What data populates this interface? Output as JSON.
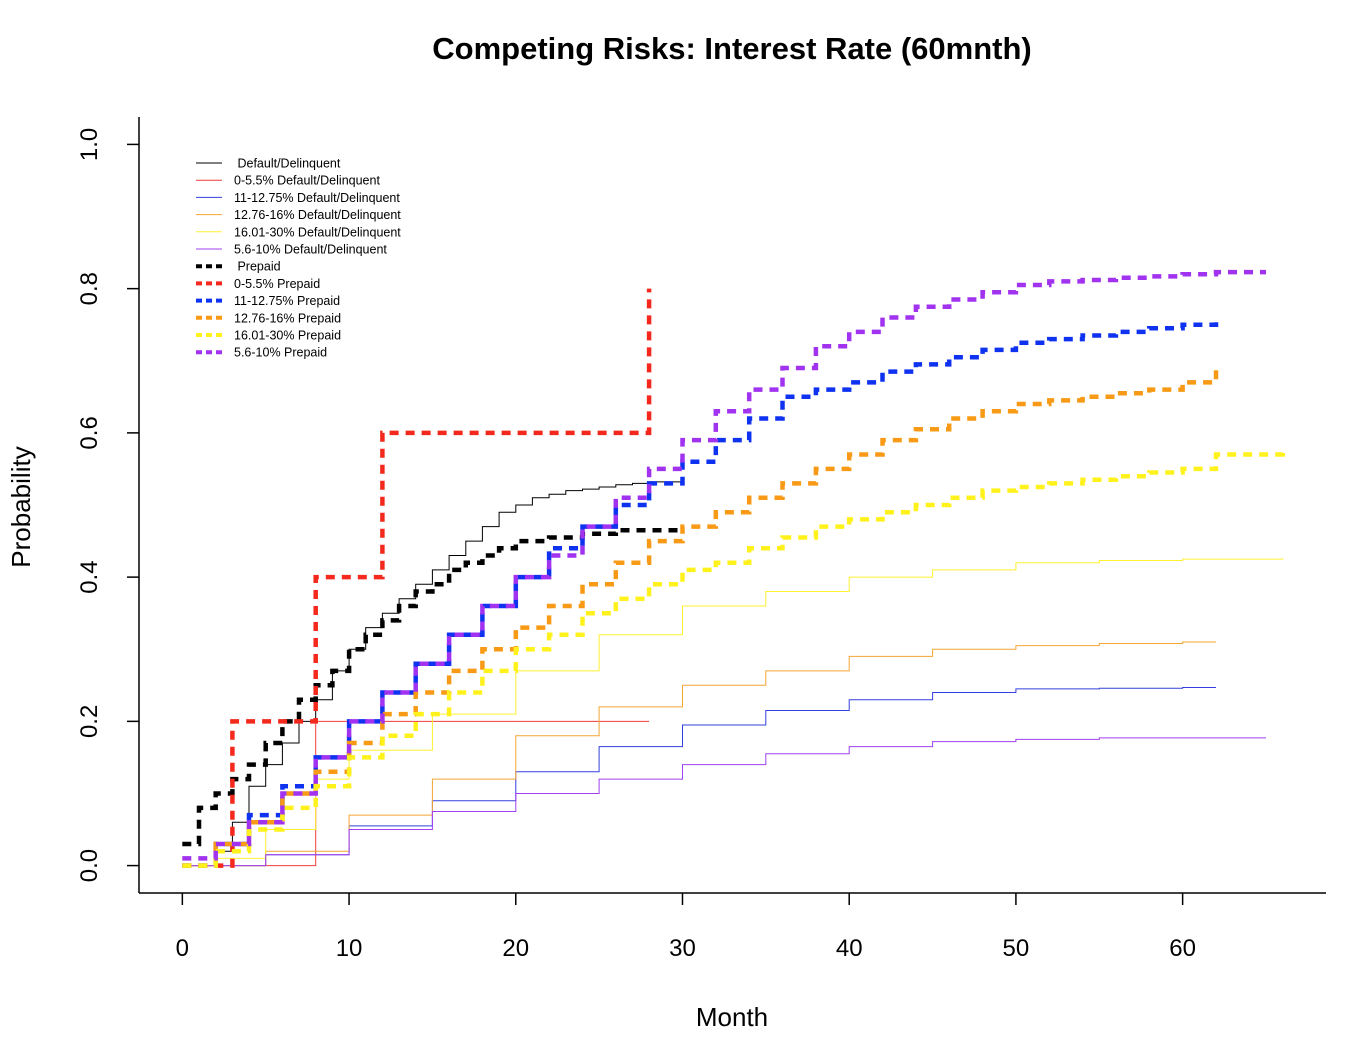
{
  "chart_data": {
    "type": "line",
    "title": "Competing Risks: Interest Rate (60mnth)",
    "xlabel": "Month",
    "ylabel": "Probability",
    "xlim": [
      -2.6,
      68.6
    ],
    "ylim": [
      -0.038,
      1.038
    ],
    "x_ticks": [
      0,
      10,
      20,
      30,
      40,
      50,
      60
    ],
    "y_ticks": [
      0.0,
      0.2,
      0.4,
      0.6,
      0.8,
      1.0
    ],
    "x_tick_labels": [
      "0",
      "10",
      "20",
      "30",
      "40",
      "50",
      "60"
    ],
    "y_tick_labels": [
      "0.0",
      "0.2",
      "0.4",
      "0.6",
      "0.8",
      "1.0"
    ],
    "grid": false,
    "legend_position": "top-left",
    "step": true,
    "series": [
      {
        "name": " Default/Delinquent",
        "color": "#000000",
        "style": "thin",
        "points": [
          [
            0,
            0
          ],
          [
            2,
            0.02
          ],
          [
            3,
            0.06
          ],
          [
            4,
            0.11
          ],
          [
            5,
            0.14
          ],
          [
            6,
            0.17
          ],
          [
            7,
            0.2
          ],
          [
            8,
            0.23
          ],
          [
            9,
            0.27
          ],
          [
            10,
            0.3
          ],
          [
            11,
            0.33
          ],
          [
            12,
            0.35
          ],
          [
            13,
            0.37
          ],
          [
            14,
            0.39
          ],
          [
            15,
            0.41
          ],
          [
            16,
            0.43
          ],
          [
            17,
            0.45
          ],
          [
            18,
            0.47
          ],
          [
            19,
            0.49
          ],
          [
            20,
            0.5
          ],
          [
            21,
            0.51
          ],
          [
            22,
            0.515
          ],
          [
            23,
            0.52
          ],
          [
            24,
            0.522
          ],
          [
            25,
            0.525
          ],
          [
            26,
            0.528
          ],
          [
            27,
            0.53
          ],
          [
            28,
            0.532
          ],
          [
            30,
            0.533
          ]
        ]
      },
      {
        "name": "0-5.5% Default/Delinquent",
        "color": "#f23c3c",
        "style": "thin",
        "points": [
          [
            0,
            0
          ],
          [
            8,
            0
          ],
          [
            8,
            0.2
          ],
          [
            28,
            0.2
          ]
        ]
      },
      {
        "name": "11-12.75% Default/Delinquent",
        "color": "#3340dd",
        "style": "thin",
        "points": [
          [
            0,
            0
          ],
          [
            5,
            0.015
          ],
          [
            10,
            0.055
          ],
          [
            15,
            0.09
          ],
          [
            20,
            0.13
          ],
          [
            25,
            0.165
          ],
          [
            30,
            0.195
          ],
          [
            35,
            0.215
          ],
          [
            40,
            0.23
          ],
          [
            45,
            0.24
          ],
          [
            50,
            0.245
          ],
          [
            55,
            0.246
          ],
          [
            60,
            0.247
          ],
          [
            62,
            0.247
          ]
        ]
      },
      {
        "name": "12.76-16% Default/Delinquent",
        "color": "#f4a532",
        "style": "thin",
        "points": [
          [
            0,
            0
          ],
          [
            5,
            0.02
          ],
          [
            10,
            0.07
          ],
          [
            15,
            0.12
          ],
          [
            20,
            0.18
          ],
          [
            25,
            0.22
          ],
          [
            30,
            0.25
          ],
          [
            35,
            0.27
          ],
          [
            40,
            0.29
          ],
          [
            45,
            0.3
          ],
          [
            50,
            0.305
          ],
          [
            55,
            0.308
          ],
          [
            60,
            0.31
          ],
          [
            62,
            0.31
          ]
        ]
      },
      {
        "name": "16.01-30% Default/Delinquent",
        "color": "#fff030",
        "style": "thin",
        "points": [
          [
            0,
            0
          ],
          [
            2,
            0.01
          ],
          [
            5,
            0.05
          ],
          [
            8,
            0.12
          ],
          [
            10,
            0.16
          ],
          [
            15,
            0.21
          ],
          [
            20,
            0.27
          ],
          [
            25,
            0.32
          ],
          [
            30,
            0.36
          ],
          [
            35,
            0.38
          ],
          [
            40,
            0.4
          ],
          [
            45,
            0.41
          ],
          [
            50,
            0.42
          ],
          [
            55,
            0.423
          ],
          [
            60,
            0.425
          ],
          [
            66,
            0.426
          ]
        ]
      },
      {
        "name": "5.6-10% Default/Delinquent",
        "color": "#a040f0",
        "style": "thin",
        "points": [
          [
            0,
            0
          ],
          [
            5,
            0.015
          ],
          [
            10,
            0.05
          ],
          [
            15,
            0.075
          ],
          [
            20,
            0.1
          ],
          [
            25,
            0.12
          ],
          [
            30,
            0.14
          ],
          [
            35,
            0.155
          ],
          [
            40,
            0.165
          ],
          [
            45,
            0.172
          ],
          [
            50,
            0.175
          ],
          [
            55,
            0.177
          ],
          [
            60,
            0.177
          ],
          [
            65,
            0.177
          ]
        ]
      },
      {
        "name": " Prepaid",
        "color": "#000000",
        "style": "dashed",
        "points": [
          [
            0,
            0.03
          ],
          [
            1,
            0.08
          ],
          [
            2,
            0.1
          ],
          [
            3,
            0.12
          ],
          [
            4,
            0.14
          ],
          [
            5,
            0.17
          ],
          [
            6,
            0.2
          ],
          [
            7,
            0.23
          ],
          [
            8,
            0.25
          ],
          [
            9,
            0.27
          ],
          [
            10,
            0.3
          ],
          [
            11,
            0.32
          ],
          [
            12,
            0.34
          ],
          [
            13,
            0.36
          ],
          [
            14,
            0.38
          ],
          [
            15,
            0.39
          ],
          [
            16,
            0.41
          ],
          [
            17,
            0.42
          ],
          [
            18,
            0.43
          ],
          [
            19,
            0.44
          ],
          [
            20,
            0.45
          ],
          [
            22,
            0.455
          ],
          [
            24,
            0.46
          ],
          [
            26,
            0.465
          ],
          [
            30,
            0.467
          ]
        ]
      },
      {
        "name": "0-5.5% Prepaid",
        "color": "#f4281c",
        "style": "dashed",
        "points": [
          [
            0,
            0
          ],
          [
            3,
            0
          ],
          [
            3,
            0.2
          ],
          [
            8,
            0.2
          ],
          [
            8,
            0.4
          ],
          [
            12,
            0.4
          ],
          [
            12,
            0.6
          ],
          [
            28,
            0.6
          ],
          [
            28,
            0.8
          ]
        ]
      },
      {
        "name": "11-12.75% Prepaid",
        "color": "#0f32f0",
        "style": "dashed",
        "points": [
          [
            0,
            0
          ],
          [
            2,
            0.03
          ],
          [
            4,
            0.07
          ],
          [
            6,
            0.11
          ],
          [
            8,
            0.15
          ],
          [
            10,
            0.2
          ],
          [
            12,
            0.24
          ],
          [
            14,
            0.28
          ],
          [
            16,
            0.32
          ],
          [
            18,
            0.36
          ],
          [
            20,
            0.4
          ],
          [
            22,
            0.44
          ],
          [
            24,
            0.47
          ],
          [
            26,
            0.5
          ],
          [
            28,
            0.53
          ],
          [
            30,
            0.56
          ],
          [
            32,
            0.59
          ],
          [
            34,
            0.62
          ],
          [
            36,
            0.65
          ],
          [
            38,
            0.66
          ],
          [
            40,
            0.67
          ],
          [
            42,
            0.685
          ],
          [
            44,
            0.695
          ],
          [
            46,
            0.705
          ],
          [
            48,
            0.715
          ],
          [
            50,
            0.725
          ],
          [
            52,
            0.73
          ],
          [
            54,
            0.735
          ],
          [
            56,
            0.74
          ],
          [
            58,
            0.745
          ],
          [
            60,
            0.75
          ],
          [
            62,
            0.755
          ]
        ]
      },
      {
        "name": "12.76-16% Prepaid",
        "color": "#f89a15",
        "style": "dashed",
        "points": [
          [
            0,
            0
          ],
          [
            2,
            0.03
          ],
          [
            4,
            0.06
          ],
          [
            6,
            0.1
          ],
          [
            8,
            0.13
          ],
          [
            10,
            0.17
          ],
          [
            12,
            0.21
          ],
          [
            14,
            0.24
          ],
          [
            16,
            0.27
          ],
          [
            18,
            0.3
          ],
          [
            20,
            0.33
          ],
          [
            22,
            0.36
          ],
          [
            24,
            0.39
          ],
          [
            26,
            0.42
          ],
          [
            28,
            0.45
          ],
          [
            30,
            0.47
          ],
          [
            32,
            0.49
          ],
          [
            34,
            0.51
          ],
          [
            36,
            0.53
          ],
          [
            38,
            0.55
          ],
          [
            40,
            0.57
          ],
          [
            42,
            0.59
          ],
          [
            44,
            0.605
          ],
          [
            46,
            0.62
          ],
          [
            48,
            0.63
          ],
          [
            50,
            0.64
          ],
          [
            52,
            0.645
          ],
          [
            54,
            0.65
          ],
          [
            56,
            0.655
          ],
          [
            58,
            0.66
          ],
          [
            60,
            0.67
          ],
          [
            62,
            0.69
          ]
        ]
      },
      {
        "name": "16.01-30% Prepaid",
        "color": "#fff21c",
        "style": "dashed",
        "points": [
          [
            0,
            0
          ],
          [
            2,
            0.02
          ],
          [
            4,
            0.05
          ],
          [
            6,
            0.08
          ],
          [
            8,
            0.11
          ],
          [
            10,
            0.15
          ],
          [
            12,
            0.18
          ],
          [
            14,
            0.21
          ],
          [
            16,
            0.24
          ],
          [
            18,
            0.27
          ],
          [
            20,
            0.3
          ],
          [
            22,
            0.32
          ],
          [
            24,
            0.35
          ],
          [
            26,
            0.37
          ],
          [
            28,
            0.39
          ],
          [
            30,
            0.41
          ],
          [
            32,
            0.42
          ],
          [
            34,
            0.44
          ],
          [
            36,
            0.455
          ],
          [
            38,
            0.47
          ],
          [
            40,
            0.48
          ],
          [
            42,
            0.49
          ],
          [
            44,
            0.5
          ],
          [
            46,
            0.51
          ],
          [
            48,
            0.52
          ],
          [
            50,
            0.525
          ],
          [
            52,
            0.53
          ],
          [
            54,
            0.535
          ],
          [
            56,
            0.54
          ],
          [
            58,
            0.545
          ],
          [
            60,
            0.55
          ],
          [
            62,
            0.57
          ],
          [
            66,
            0.575
          ]
        ]
      },
      {
        "name": "5.6-10% Prepaid",
        "color": "#a032f0",
        "style": "dashed",
        "points": [
          [
            0,
            0.01
          ],
          [
            2,
            0.03
          ],
          [
            4,
            0.06
          ],
          [
            6,
            0.1
          ],
          [
            8,
            0.15
          ],
          [
            10,
            0.2
          ],
          [
            12,
            0.24
          ],
          [
            14,
            0.28
          ],
          [
            16,
            0.32
          ],
          [
            18,
            0.36
          ],
          [
            20,
            0.4
          ],
          [
            22,
            0.43
          ],
          [
            24,
            0.47
          ],
          [
            26,
            0.51
          ],
          [
            28,
            0.55
          ],
          [
            30,
            0.59
          ],
          [
            32,
            0.63
          ],
          [
            34,
            0.66
          ],
          [
            36,
            0.69
          ],
          [
            38,
            0.72
          ],
          [
            40,
            0.74
          ],
          [
            42,
            0.76
          ],
          [
            44,
            0.775
          ],
          [
            46,
            0.785
          ],
          [
            48,
            0.795
          ],
          [
            50,
            0.805
          ],
          [
            52,
            0.81
          ],
          [
            54,
            0.812
          ],
          [
            56,
            0.815
          ],
          [
            58,
            0.817
          ],
          [
            60,
            0.82
          ],
          [
            62,
            0.823
          ],
          [
            65,
            0.823
          ]
        ]
      }
    ]
  }
}
